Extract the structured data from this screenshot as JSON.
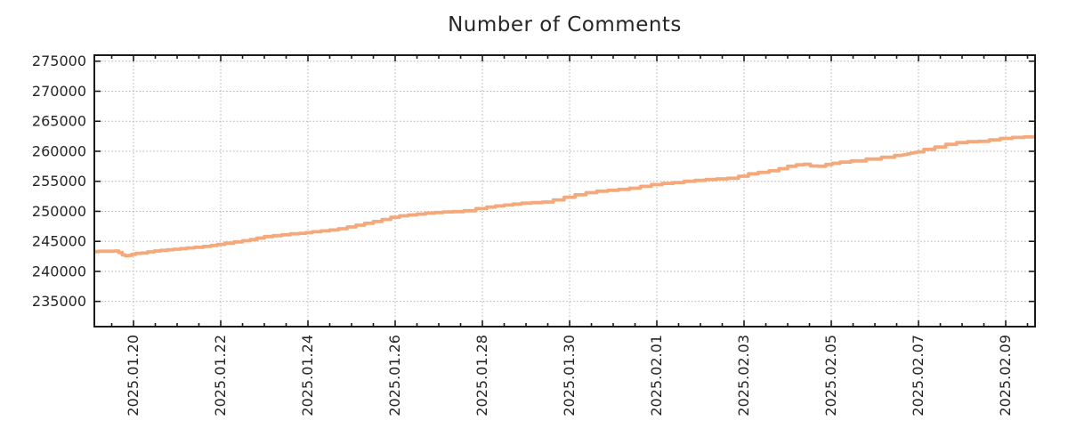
{
  "page": {
    "background": "#ffffff"
  },
  "chart_data": {
    "type": "line",
    "title": "Number of Comments",
    "legend": {
      "visible": false
    },
    "grid": {
      "visible": true,
      "style": "dashed",
      "color": "#b0b0b0"
    },
    "x_axis": {
      "label": "",
      "tick_labels": [
        "2025.01.20",
        "2025.01.22",
        "2025.01.24",
        "2025.01.26",
        "2025.01.28",
        "2025.01.30",
        "2025.02.01",
        "2025.02.03",
        "2025.02.05",
        "2025.02.07",
        "2025.02.09"
      ],
      "tick_days": [
        1,
        3,
        5,
        7,
        9,
        11,
        13,
        15,
        17,
        19,
        21
      ],
      "minor_tick_step_days": 0.5,
      "range_days": [
        0.102,
        21.673
      ],
      "tick_label_rotation_deg": -90
    },
    "y_axis": {
      "label": "",
      "tick_labels": [
        "235000",
        "240000",
        "245000",
        "250000",
        "255000",
        "260000",
        "265000",
        "270000",
        "275000"
      ],
      "tick_values": [
        235000,
        240000,
        245000,
        250000,
        255000,
        260000,
        265000,
        270000,
        275000
      ],
      "range": [
        230800,
        276000
      ]
    },
    "series": [
      {
        "color": "#f5a97b",
        "line_width": 3.8,
        "interpolation": "step-mid",
        "points": [
          [
            0.1,
            243300
          ],
          [
            0.3,
            243350
          ],
          [
            0.5,
            243350
          ],
          [
            0.62,
            243400
          ],
          [
            0.7,
            243150
          ],
          [
            0.78,
            242750
          ],
          [
            0.85,
            242600
          ],
          [
            0.92,
            242650
          ],
          [
            1.0,
            242850
          ],
          [
            1.1,
            243000
          ],
          [
            1.25,
            243050
          ],
          [
            1.4,
            243250
          ],
          [
            1.55,
            243400
          ],
          [
            1.7,
            243500
          ],
          [
            1.85,
            243600
          ],
          [
            2.0,
            243700
          ],
          [
            2.15,
            243800
          ],
          [
            2.3,
            243900
          ],
          [
            2.5,
            244000
          ],
          [
            2.7,
            244150
          ],
          [
            2.85,
            244300
          ],
          [
            3.0,
            244500
          ],
          [
            3.2,
            244700
          ],
          [
            3.4,
            244900
          ],
          [
            3.6,
            245100
          ],
          [
            3.75,
            245300
          ],
          [
            3.9,
            245550
          ],
          [
            4.1,
            245800
          ],
          [
            4.3,
            245950
          ],
          [
            4.5,
            246100
          ],
          [
            4.7,
            246250
          ],
          [
            4.9,
            246350
          ],
          [
            5.0,
            246450
          ],
          [
            5.2,
            246600
          ],
          [
            5.4,
            246750
          ],
          [
            5.6,
            246900
          ],
          [
            5.8,
            247100
          ],
          [
            6.0,
            247400
          ],
          [
            6.2,
            247700
          ],
          [
            6.4,
            248000
          ],
          [
            6.6,
            248300
          ],
          [
            6.8,
            248650
          ],
          [
            7.0,
            249000
          ],
          [
            7.2,
            249250
          ],
          [
            7.4,
            249400
          ],
          [
            7.6,
            249550
          ],
          [
            7.8,
            249700
          ],
          [
            8.0,
            249800
          ],
          [
            8.2,
            249900
          ],
          [
            8.45,
            249950
          ],
          [
            8.7,
            250100
          ],
          [
            9.0,
            250450
          ],
          [
            9.2,
            250700
          ],
          [
            9.4,
            250900
          ],
          [
            9.6,
            251050
          ],
          [
            9.8,
            251200
          ],
          [
            10.0,
            251350
          ],
          [
            10.25,
            251450
          ],
          [
            10.5,
            251550
          ],
          [
            10.75,
            251900
          ],
          [
            11.0,
            252350
          ],
          [
            11.25,
            252750
          ],
          [
            11.5,
            253100
          ],
          [
            11.75,
            253350
          ],
          [
            12.0,
            253500
          ],
          [
            12.25,
            253650
          ],
          [
            12.5,
            253850
          ],
          [
            12.75,
            254150
          ],
          [
            13.0,
            254450
          ],
          [
            13.25,
            254650
          ],
          [
            13.5,
            254800
          ],
          [
            13.75,
            255000
          ],
          [
            14.0,
            255150
          ],
          [
            14.25,
            255300
          ],
          [
            14.5,
            255400
          ],
          [
            14.75,
            255500
          ],
          [
            15.0,
            255850
          ],
          [
            15.2,
            256250
          ],
          [
            15.45,
            256500
          ],
          [
            15.7,
            256750
          ],
          [
            15.9,
            257100
          ],
          [
            16.1,
            257500
          ],
          [
            16.3,
            257750
          ],
          [
            16.45,
            257850
          ],
          [
            16.6,
            257550
          ],
          [
            16.8,
            257500
          ],
          [
            16.95,
            257800
          ],
          [
            17.1,
            258000
          ],
          [
            17.3,
            258200
          ],
          [
            17.6,
            258400
          ],
          [
            18.0,
            258700
          ],
          [
            18.3,
            259000
          ],
          [
            18.6,
            259300
          ],
          [
            19.0,
            259900
          ],
          [
            19.25,
            260300
          ],
          [
            19.5,
            260700
          ],
          [
            19.75,
            261150
          ],
          [
            20.0,
            261450
          ],
          [
            20.25,
            261600
          ],
          [
            20.5,
            261650
          ],
          [
            20.75,
            261900
          ],
          [
            21.0,
            262150
          ],
          [
            21.3,
            262300
          ],
          [
            21.55,
            262400
          ],
          [
            21.67,
            262400
          ]
        ]
      }
    ],
    "colors": {
      "frame": "#1a1a1a",
      "tick_text": "#262626",
      "title_text": "#262626"
    }
  }
}
